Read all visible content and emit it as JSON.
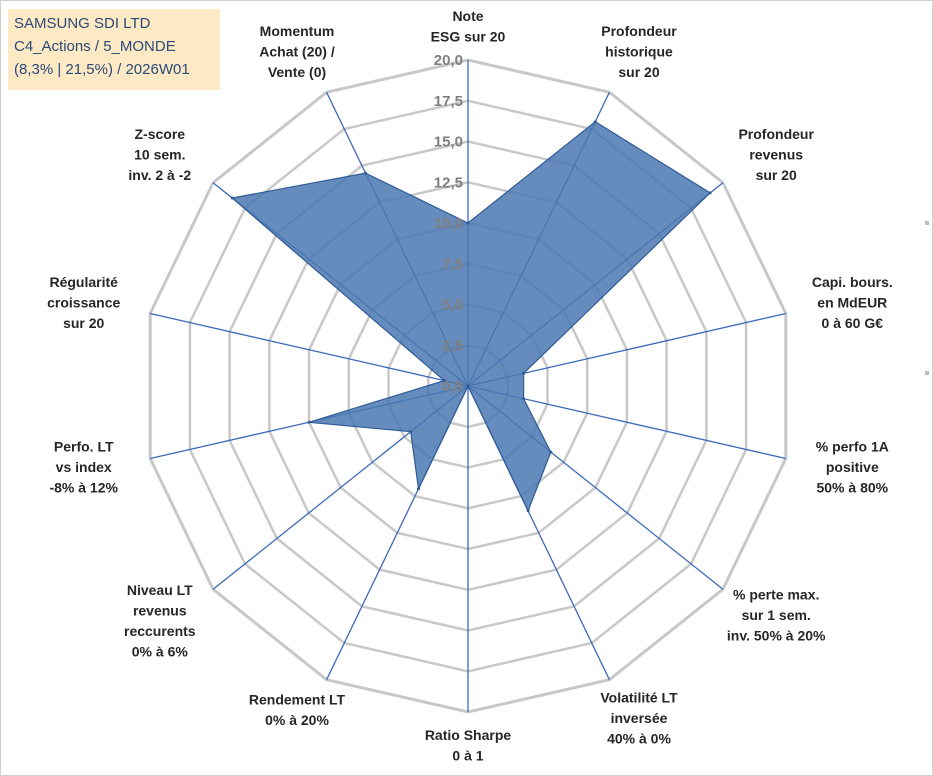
{
  "title_box": {
    "line1": "SAMSUNG SDI LTD",
    "line2": "C4_Actions / 5_MONDE",
    "line3": "(8,3% | 21,5%) / 2026W01"
  },
  "colors": {
    "fill": "#4a78b0",
    "stroke": "#2f5c97",
    "grid": "#c8c8c8",
    "spoke": "#3d6ab8",
    "title_bg": "#fde9c4"
  },
  "chart_data": {
    "type": "radar",
    "title": "SAMSUNG SDI LTD",
    "rmin": 0,
    "rmax": 20,
    "ticks": [
      "0,0",
      "2,5",
      "5,0",
      "7,5",
      "10,0",
      "12,5",
      "15,0",
      "17,5",
      "20,0"
    ],
    "axes": [
      {
        "label": [
          "Note",
          "ESG sur 20"
        ],
        "value": 10.0
      },
      {
        "label": [
          "Profondeur",
          "historique",
          "sur 20"
        ],
        "value": 18.0
      },
      {
        "label": [
          "Profondeur",
          "revenus",
          "sur 20"
        ],
        "value": 19.0
      },
      {
        "label": [
          "Capi. bours.",
          "en MdEUR",
          "0 à 60 G€"
        ],
        "value": 3.5
      },
      {
        "label": [
          "% perfo 1A",
          "positive",
          "50% à 80%"
        ],
        "value": 3.5
      },
      {
        "label": [
          "% perte max.",
          "sur 1 sem.",
          "inv. 50% à 20%"
        ],
        "value": 6.5
      },
      {
        "label": [
          "Volatilité LT",
          "inversée",
          "40% à 0%"
        ],
        "value": 8.5
      },
      {
        "label": [
          "Ratio Sharpe",
          "0 à 1"
        ],
        "value": 0.0
      },
      {
        "label": [
          "Rendement LT",
          "0% à 20%"
        ],
        "value": 7.0
      },
      {
        "label": [
          "Niveau LT",
          "revenus",
          "reccurents",
          "0% à 6%"
        ],
        "value": 4.5
      },
      {
        "label": [
          "Perfo. LT",
          "vs index",
          "-8% à 12%"
        ],
        "value": 10.0
      },
      {
        "label": [
          "Régularité",
          "croissance",
          "sur 20"
        ],
        "value": 1.5
      },
      {
        "label": [
          "Z-score",
          "10 sem.",
          "inv. 2 à -2"
        ],
        "value": 18.5
      },
      {
        "label": [
          "Momentum",
          "Achat (20) /",
          "Vente (0)"
        ],
        "value": 14.5
      }
    ]
  }
}
